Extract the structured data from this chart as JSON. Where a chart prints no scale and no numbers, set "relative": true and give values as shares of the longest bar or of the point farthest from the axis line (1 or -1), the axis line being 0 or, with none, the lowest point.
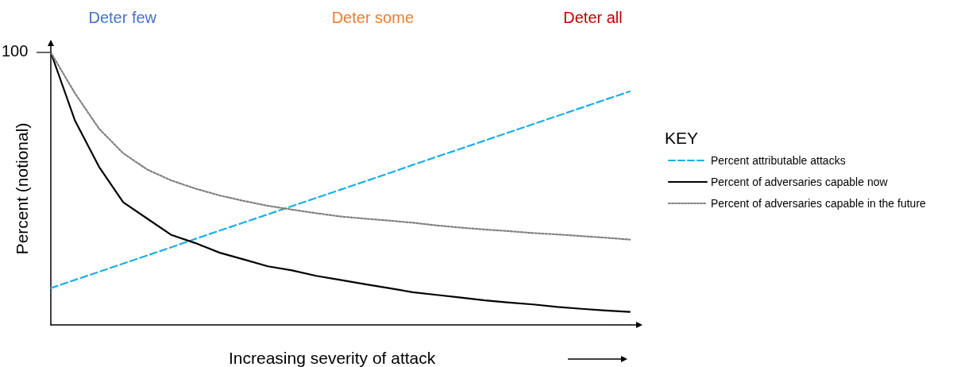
{
  "chart_data": {
    "type": "line",
    "relative": true,
    "ylabel": "Percent (notional)",
    "xlabel": "Increasing severity of attack",
    "legend_title": "KEY",
    "legend": "right",
    "marker": "none",
    "grid": false,
    "annotations": [
      "Deter few",
      "Deter some",
      "Deter all",
      "100"
    ],
    "categories": [
      null,
      null,
      null,
      null,
      null,
      null,
      null,
      null,
      null,
      null,
      null,
      null,
      null,
      null,
      null,
      null,
      null,
      null,
      null,
      null,
      null,
      null,
      null,
      null,
      null
    ],
    "series": [
      {
        "name": "Percent attributable attacks",
        "color": "#1aafe6",
        "line_style": "dashed",
        "values": [
          0.135,
          0.165,
          0.195,
          0.225,
          0.255,
          0.285,
          0.316,
          0.346,
          0.376,
          0.406,
          0.436,
          0.466,
          0.496,
          0.526,
          0.556,
          0.587,
          0.617,
          0.647,
          0.677,
          0.707,
          0.737,
          0.767,
          0.797,
          0.827,
          0.857
        ]
      },
      {
        "name": "Percent of adversaries capable now",
        "color": "#000000",
        "line_style": "solid",
        "values": [
          1.0,
          0.75,
          0.58,
          0.45,
          0.39,
          0.33,
          0.3,
          0.265,
          0.24,
          0.215,
          0.2,
          0.18,
          0.165,
          0.15,
          0.135,
          0.12,
          0.11,
          0.1,
          0.09,
          0.082,
          0.075,
          0.066,
          0.059,
          0.053,
          0.048
        ]
      },
      {
        "name": "Percent of adversaries capable in the future",
        "color": "#808080",
        "line_style": "dotted",
        "values": [
          1.0,
          0.85,
          0.72,
          0.63,
          0.57,
          0.53,
          0.5,
          0.475,
          0.455,
          0.437,
          0.423,
          0.41,
          0.398,
          0.39,
          0.383,
          0.375,
          0.365,
          0.357,
          0.35,
          0.344,
          0.337,
          0.332,
          0.326,
          0.32,
          0.313
        ]
      }
    ]
  }
}
